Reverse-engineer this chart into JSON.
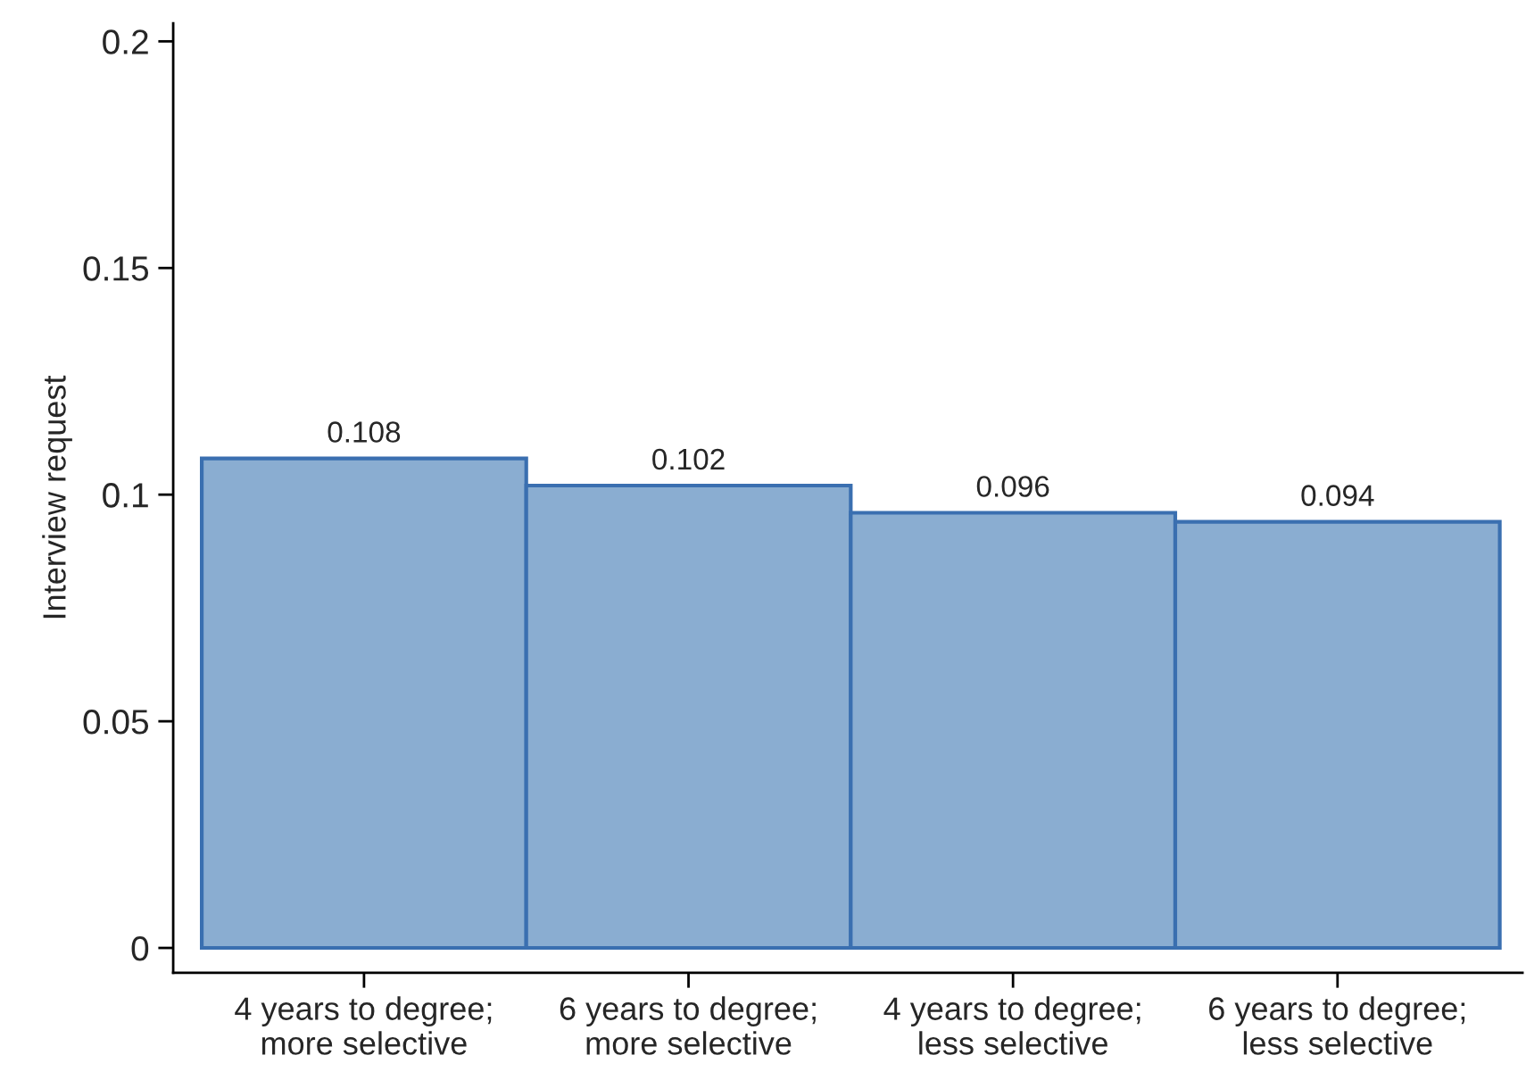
{
  "chart_data": {
    "type": "bar",
    "ylabel": "Interview request",
    "categories": [
      "4 years to degree;\nmore selective",
      "6 years to degree;\nmore selective",
      "4 years to degree;\nless selective",
      "6 years to degree;\nless selective"
    ],
    "values": [
      0.108,
      0.102,
      0.096,
      0.094
    ],
    "color": "#8aadd1",
    "ylim": [
      -0.0055,
      0.204
    ],
    "yticks": [
      0,
      0.05,
      0.1,
      0.15,
      0.2
    ],
    "data_labels": true,
    "grid": false,
    "legend": false
  }
}
